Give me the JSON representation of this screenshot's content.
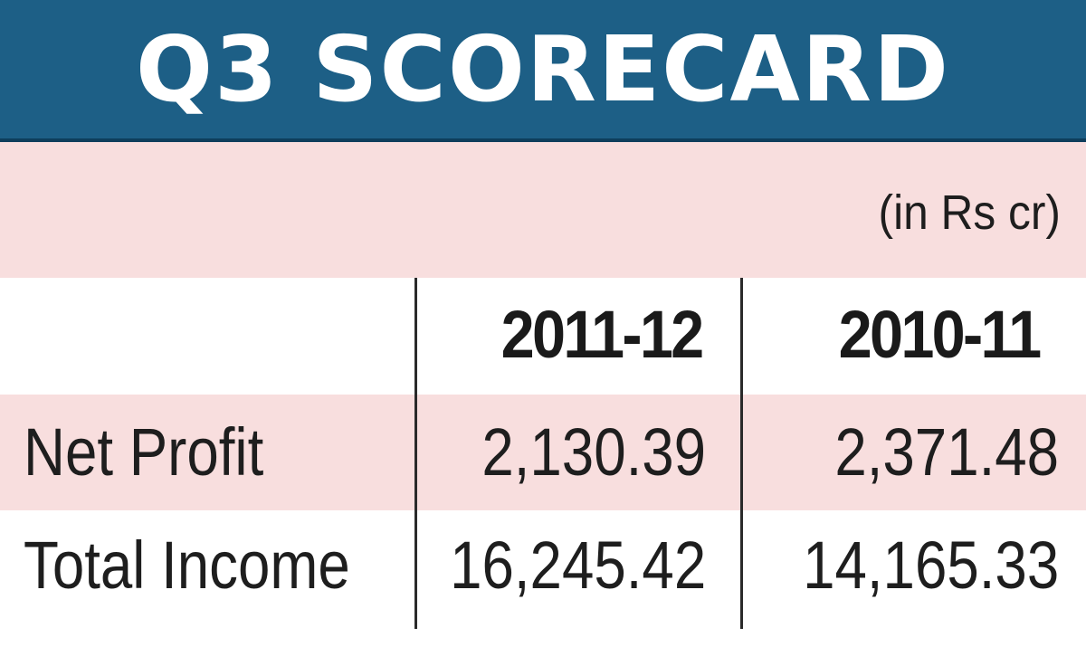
{
  "chart_data": {
    "type": "table",
    "title": "Q3 SCORECARD",
    "unit_note": "(in Rs cr)",
    "columns": [
      "2011-12",
      "2010-11"
    ],
    "rows": [
      {
        "label": "Net Profit",
        "values": [
          "2,130.39",
          "2,371.48"
        ]
      },
      {
        "label": "Total Income",
        "values": [
          "16,245.42",
          "14,165.33"
        ]
      }
    ]
  },
  "colors": {
    "title_bar": "#1d5f86",
    "row_highlight": "#f8dede",
    "text": "#1e1e1e"
  }
}
